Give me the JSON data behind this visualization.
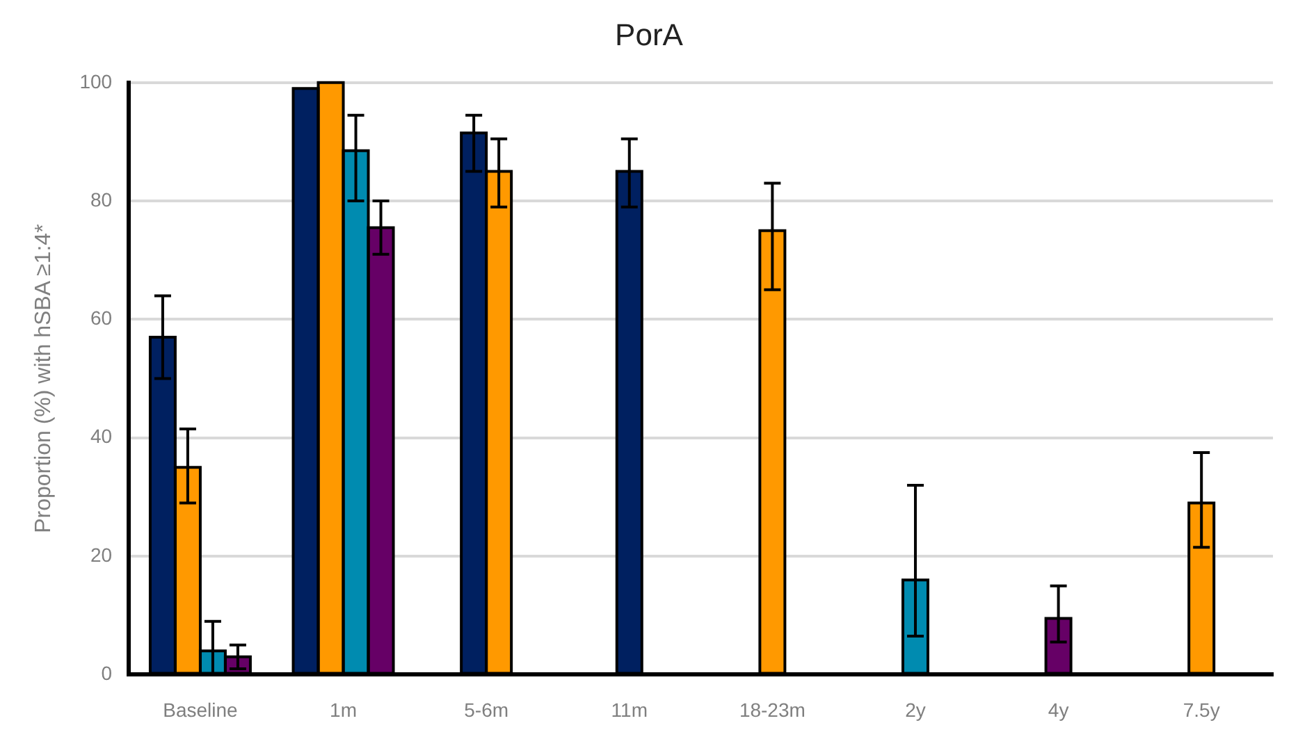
{
  "chart_data": {
    "type": "bar",
    "title": "PorA",
    "ylabel": "Proportion (%) with hSBA ≥1:4*",
    "categories": [
      "Baseline",
      "1m",
      "5-6m",
      "11m",
      "18-23m",
      "2y",
      "4y",
      "7.5y"
    ],
    "series": [
      {
        "color": "#002060",
        "values": [
          57,
          99,
          91.5,
          85,
          null,
          null,
          null,
          null
        ],
        "errors": [
          [
            50,
            64
          ],
          null,
          [
            85,
            94.5
          ],
          [
            79,
            90.5
          ],
          null,
          null,
          null,
          null
        ]
      },
      {
        "color": "#ff9900",
        "values": [
          35,
          100,
          85,
          null,
          75,
          null,
          null,
          29
        ],
        "errors": [
          [
            29,
            41.5
          ],
          null,
          [
            79,
            90.5
          ],
          null,
          [
            65,
            83
          ],
          null,
          null,
          [
            21.5,
            37.5
          ]
        ]
      },
      {
        "color": "#008bb0",
        "values": [
          4,
          88.5,
          null,
          null,
          null,
          16,
          null,
          null
        ],
        "errors": [
          [
            0,
            9
          ],
          [
            80,
            94.5
          ],
          null,
          null,
          null,
          [
            6.5,
            32
          ],
          null,
          null
        ]
      },
      {
        "color": "#660066",
        "values": [
          3,
          75.5,
          null,
          null,
          null,
          null,
          9.5,
          null
        ],
        "errors": [
          [
            1,
            5
          ],
          [
            71,
            80
          ],
          null,
          null,
          null,
          null,
          [
            5.5,
            15
          ],
          null
        ]
      }
    ],
    "ylim": [
      0,
      100
    ],
    "yticks": [
      0,
      20,
      40,
      60,
      80,
      100
    ],
    "grid": "y",
    "legend": false
  }
}
